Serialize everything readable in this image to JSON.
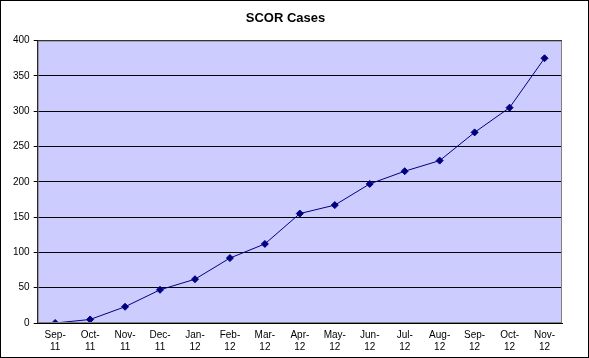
{
  "chart_data": {
    "type": "line",
    "title": "SCOR Cases",
    "categories": [
      "Sep-11",
      "Oct-11",
      "Nov-11",
      "Dec-11",
      "Jan-12",
      "Feb-12",
      "Mar-12",
      "Apr-12",
      "May-12",
      "Jun-12",
      "Jul-12",
      "Aug-12",
      "Sep-12",
      "Oct-12",
      "Nov-12"
    ],
    "values": [
      0,
      5,
      23,
      47,
      62,
      92,
      112,
      155,
      167,
      197,
      215,
      230,
      270,
      305,
      375
    ],
    "color": "#000080",
    "marker": "diamond",
    "ylim": [
      0,
      400
    ],
    "yticks": [
      0,
      50,
      100,
      150,
      200,
      250,
      300,
      350,
      400
    ],
    "grid": true
  }
}
